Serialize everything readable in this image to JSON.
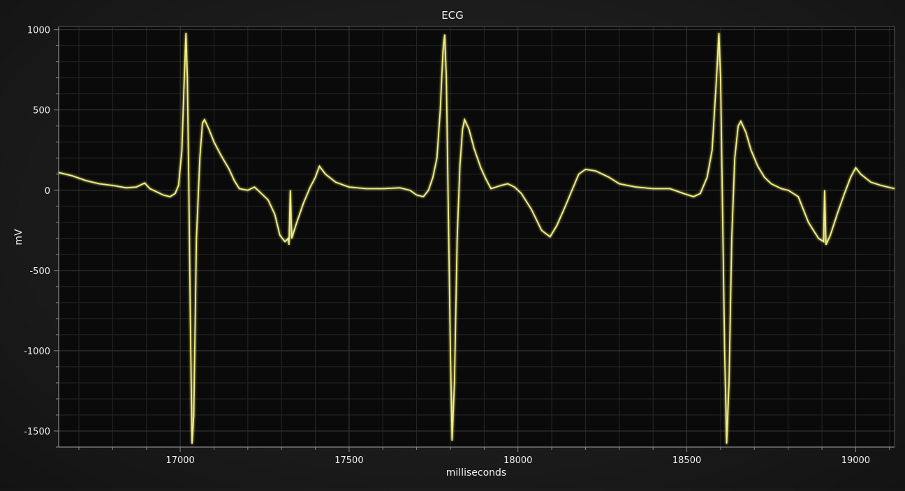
{
  "chart_data": {
    "type": "line",
    "title": "ECG",
    "xlabel": "milliseconds",
    "ylabel": "mV",
    "xlim": [
      16640,
      19115
    ],
    "ylim": [
      -1600,
      1020
    ],
    "x_ticks": [
      17000,
      17500,
      18000,
      18500,
      19000
    ],
    "x_minor_step": 100,
    "y_ticks": [
      1000,
      500,
      0,
      -500,
      -1000,
      -1500
    ],
    "y_minor_step": 100,
    "grid": true,
    "legend": "none",
    "colors": {
      "line": "#f2ef82",
      "major_grid": "#3a3a3a",
      "minor_grid": "#262626",
      "axis": "#8a8a8a",
      "text": "#f0f0f0"
    },
    "series": [
      {
        "points": [
          [
            16640,
            110
          ],
          [
            16680,
            90
          ],
          [
            16720,
            60
          ],
          [
            16760,
            40
          ],
          [
            16800,
            30
          ],
          [
            16840,
            15
          ],
          [
            16870,
            20
          ],
          [
            16895,
            45
          ],
          [
            16910,
            10
          ],
          [
            16930,
            -10
          ],
          [
            16950,
            -30
          ],
          [
            16970,
            -40
          ],
          [
            16985,
            -20
          ],
          [
            16995,
            30
          ],
          [
            17005,
            250
          ],
          [
            17012,
            700
          ],
          [
            17017,
            980
          ],
          [
            17021,
            700
          ],
          [
            17025,
            100
          ],
          [
            17030,
            -800
          ],
          [
            17035,
            -1580
          ],
          [
            17040,
            -1400
          ],
          [
            17048,
            -300
          ],
          [
            17058,
            200
          ],
          [
            17066,
            420
          ],
          [
            17072,
            440
          ],
          [
            17085,
            380
          ],
          [
            17100,
            300
          ],
          [
            17120,
            220
          ],
          [
            17145,
            130
          ],
          [
            17160,
            60
          ],
          [
            17175,
            10
          ],
          [
            17200,
            0
          ],
          [
            17220,
            20
          ],
          [
            17240,
            -20
          ],
          [
            17260,
            -60
          ],
          [
            17280,
            -150
          ],
          [
            17295,
            -280
          ],
          [
            17310,
            -320
          ],
          [
            17320,
            -300
          ],
          [
            17322,
            -340
          ],
          [
            17326,
            0
          ],
          [
            17330,
            -300
          ],
          [
            17345,
            -200
          ],
          [
            17365,
            -80
          ],
          [
            17385,
            20
          ],
          [
            17400,
            80
          ],
          [
            17412,
            150
          ],
          [
            17430,
            100
          ],
          [
            17460,
            50
          ],
          [
            17500,
            20
          ],
          [
            17550,
            10
          ],
          [
            17600,
            10
          ],
          [
            17650,
            15
          ],
          [
            17680,
            0
          ],
          [
            17700,
            -30
          ],
          [
            17720,
            -40
          ],
          [
            17735,
            0
          ],
          [
            17748,
            80
          ],
          [
            17760,
            200
          ],
          [
            17770,
            500
          ],
          [
            17778,
            870
          ],
          [
            17783,
            970
          ],
          [
            17788,
            700
          ],
          [
            17793,
            0
          ],
          [
            17800,
            -1000
          ],
          [
            17805,
            -1560
          ],
          [
            17812,
            -1200
          ],
          [
            17820,
            -300
          ],
          [
            17828,
            150
          ],
          [
            17836,
            380
          ],
          [
            17842,
            440
          ],
          [
            17855,
            380
          ],
          [
            17870,
            260
          ],
          [
            17890,
            140
          ],
          [
            17905,
            70
          ],
          [
            17920,
            10
          ],
          [
            17935,
            20
          ],
          [
            17950,
            30
          ],
          [
            17970,
            40
          ],
          [
            17990,
            20
          ],
          [
            18010,
            -20
          ],
          [
            18040,
            -120
          ],
          [
            18070,
            -250
          ],
          [
            18095,
            -290
          ],
          [
            18115,
            -220
          ],
          [
            18140,
            -100
          ],
          [
            18160,
            0
          ],
          [
            18180,
            100
          ],
          [
            18200,
            130
          ],
          [
            18230,
            120
          ],
          [
            18270,
            80
          ],
          [
            18300,
            40
          ],
          [
            18350,
            20
          ],
          [
            18400,
            10
          ],
          [
            18450,
            10
          ],
          [
            18490,
            -20
          ],
          [
            18520,
            -40
          ],
          [
            18540,
            -20
          ],
          [
            18560,
            80
          ],
          [
            18575,
            250
          ],
          [
            18588,
            700
          ],
          [
            18595,
            980
          ],
          [
            18600,
            700
          ],
          [
            18605,
            0
          ],
          [
            18612,
            -1000
          ],
          [
            18618,
            -1580
          ],
          [
            18625,
            -1200
          ],
          [
            18633,
            -300
          ],
          [
            18642,
            200
          ],
          [
            18652,
            400
          ],
          [
            18660,
            430
          ],
          [
            18675,
            360
          ],
          [
            18690,
            250
          ],
          [
            18710,
            150
          ],
          [
            18730,
            80
          ],
          [
            18750,
            40
          ],
          [
            18780,
            10
          ],
          [
            18800,
            0
          ],
          [
            18830,
            -40
          ],
          [
            18860,
            -200
          ],
          [
            18890,
            -300
          ],
          [
            18905,
            -320
          ],
          [
            18908,
            0
          ],
          [
            18912,
            -340
          ],
          [
            18925,
            -280
          ],
          [
            18945,
            -150
          ],
          [
            18965,
            -30
          ],
          [
            18985,
            80
          ],
          [
            19000,
            140
          ],
          [
            19015,
            100
          ],
          [
            19045,
            50
          ],
          [
            19075,
            30
          ],
          [
            19115,
            10
          ]
        ]
      }
    ]
  }
}
